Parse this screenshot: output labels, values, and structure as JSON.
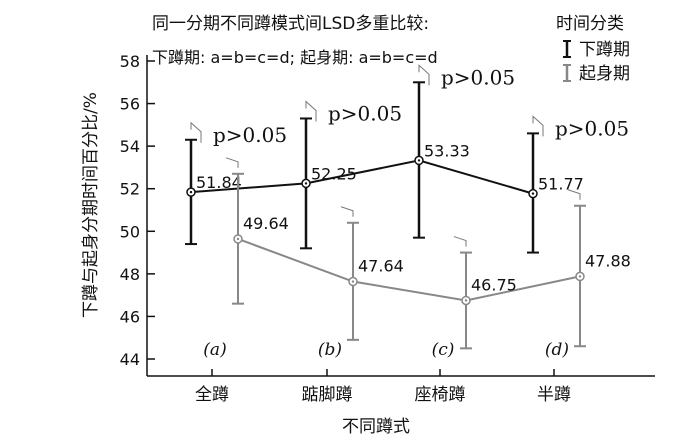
{
  "chart_data": {
    "type": "line",
    "title_line1": "同一分期不同蹲模式间LSD多重比较:",
    "title_line2": "下蹲期: a=b=c=d; 起身期: a=b=c=d",
    "xlabel": "不同蹲式",
    "ylabel": "下蹲与起身分期时间百分比/%",
    "ylim": [
      44,
      58
    ],
    "yticks": [
      44,
      46,
      48,
      50,
      52,
      54,
      56,
      58
    ],
    "categories": [
      "全蹲",
      "踮脚蹲",
      "座椅蹲",
      "半蹲"
    ],
    "category_tags": [
      "(a)",
      "(b)",
      "(c)",
      "(d)"
    ],
    "legend_title": "时间分类",
    "legend_position": "top-right",
    "significance_label": "p>0.05",
    "series": [
      {
        "name": "下蹲期",
        "color": "#111111",
        "values": [
          51.84,
          52.25,
          53.33,
          51.77
        ],
        "labels": [
          "51.84",
          "52.25",
          "53.33",
          "51.77"
        ],
        "err_low": [
          49.4,
          49.2,
          49.7,
          49.0
        ],
        "err_high": [
          54.3,
          55.3,
          57.0,
          54.6
        ]
      },
      {
        "name": "起身期",
        "color": "#888888",
        "values": [
          49.64,
          47.64,
          46.75,
          47.88
        ],
        "labels": [
          "49.64",
          "47.64",
          "46.75",
          "47.88"
        ],
        "err_low": [
          46.6,
          44.9,
          44.5,
          44.6
        ],
        "err_high": [
          52.7,
          50.4,
          49.0,
          51.2
        ]
      }
    ]
  }
}
